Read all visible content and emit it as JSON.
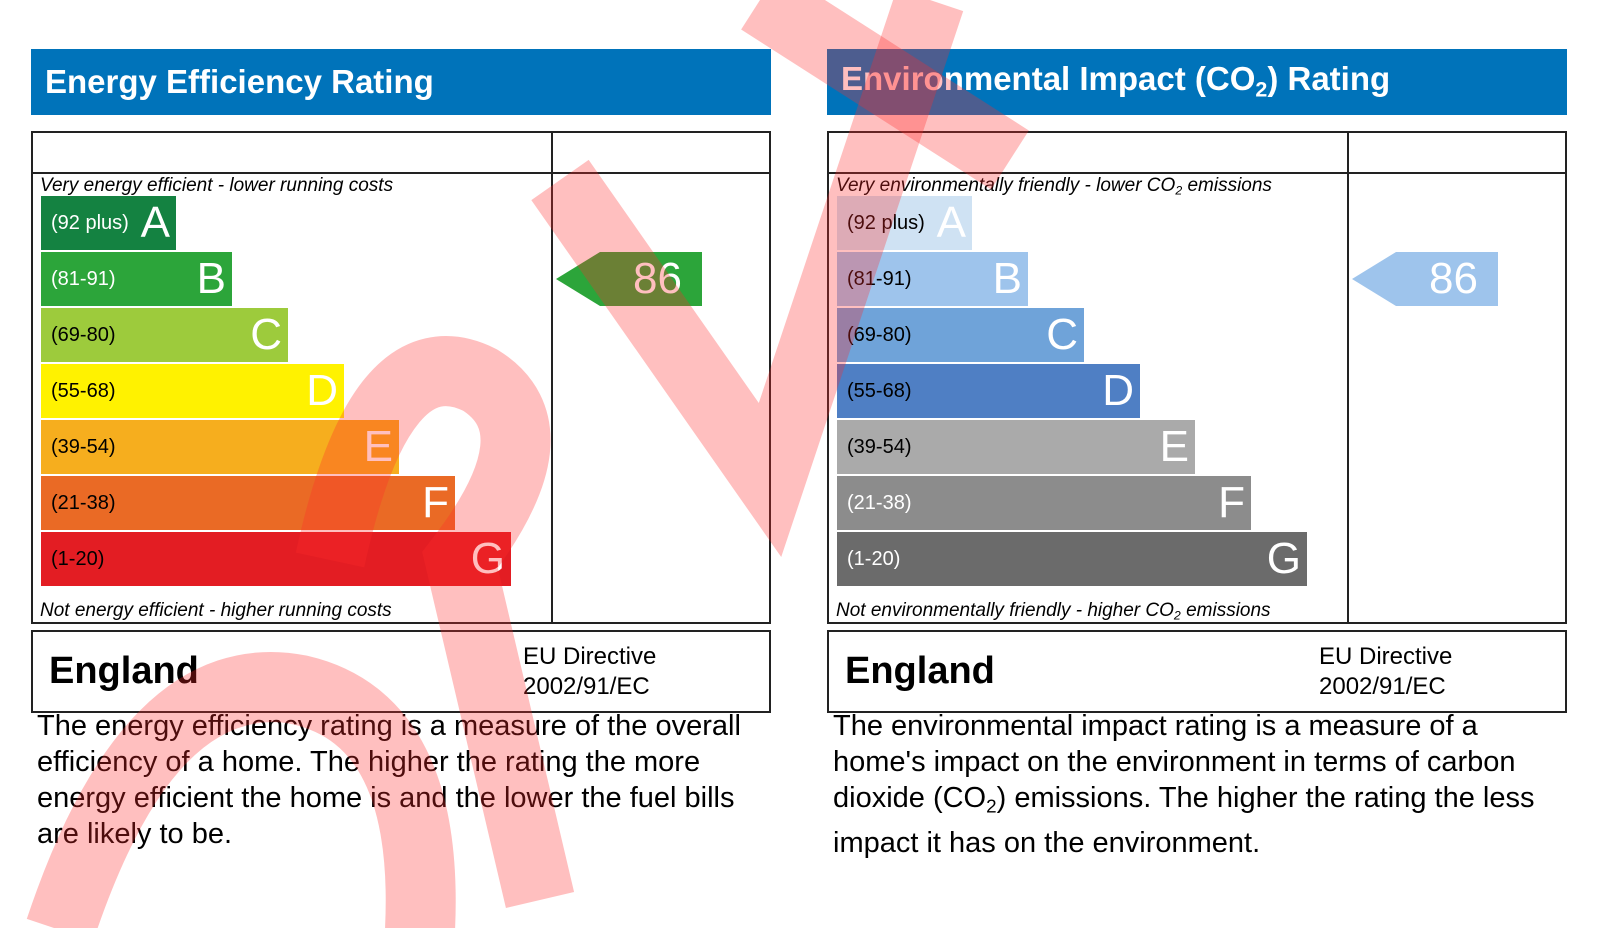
{
  "chart_data": [
    {
      "type": "bar",
      "title": "Energy Efficiency Rating",
      "caption_top": "Very energy efficient - lower running costs",
      "caption_bottom": "Not energy efficient - higher running costs",
      "categories": [
        "A",
        "B",
        "C",
        "D",
        "E",
        "F",
        "G"
      ],
      "ranges": [
        "(92 plus)",
        "(81-91)",
        "(69-80)",
        "(55-68)",
        "(39-54)",
        "(21-38)",
        "(1-20)"
      ],
      "colors": [
        "#148241",
        "#2ca53a",
        "#9dcb3c",
        "#fff200",
        "#f6ae1e",
        "#ea6a25",
        "#e31d23"
      ],
      "text_colors": [
        "#ffffff",
        "#ffffff",
        "#000000",
        "#000000",
        "#000000",
        "#000000",
        "#000000"
      ],
      "letter_colors": [
        "#ffffff",
        "#ffffff",
        "#ffffff",
        "#ffffff",
        "#ffffff",
        "#ffffff",
        "#ffffff"
      ],
      "current_rating": 86,
      "current_band": "B",
      "arrow_color": "#2ca53a",
      "country": "England",
      "directive_line1": "EU Directive",
      "directive_line2": "2002/91/EC",
      "description": "The energy efficiency rating is a measure of the overall efficiency of a home. The higher the rating the more energy efficient the home is and the lower the fuel bills are likely to be."
    },
    {
      "type": "bar",
      "title_pre": "Environmental Impact (CO",
      "title_sub": "2",
      "title_post": ") Rating",
      "caption_top_pre": "Very environmentally friendly - lower CO",
      "caption_top_sub": "2",
      "caption_top_post": " emissions",
      "caption_bottom_pre": "Not environmentally friendly - higher CO",
      "caption_bottom_sub": "2",
      "caption_bottom_post": " emissions",
      "categories": [
        "A",
        "B",
        "C",
        "D",
        "E",
        "F",
        "G"
      ],
      "ranges": [
        "(92 plus)",
        "(81-91)",
        "(69-80)",
        "(55-68)",
        "(39-54)",
        "(21-38)",
        "(1-20)"
      ],
      "colors": [
        "#cfe2f3",
        "#9ec4ec",
        "#6fa3d9",
        "#4f7fc4",
        "#aaaaaa",
        "#8c8c8c",
        "#6b6b6b"
      ],
      "text_colors": [
        "#000000",
        "#000000",
        "#000000",
        "#000000",
        "#000000",
        "#ffffff",
        "#ffffff"
      ],
      "letter_colors": [
        "#ffffff",
        "#ffffff",
        "#ffffff",
        "#ffffff",
        "#ffffff",
        "#ffffff",
        "#ffffff"
      ],
      "current_rating": 86,
      "current_band": "B",
      "arrow_color": "#9ec4ec",
      "country": "England",
      "directive_line1": "EU Directive",
      "directive_line2": "2002/91/EC",
      "desc_pre": "The environmental impact rating is a measure of a home's impact on the environment in terms of carbon dioxide (CO",
      "desc_sub": "2",
      "desc_post": ") emissions. The higher the rating the less impact it has on the environment."
    }
  ]
}
